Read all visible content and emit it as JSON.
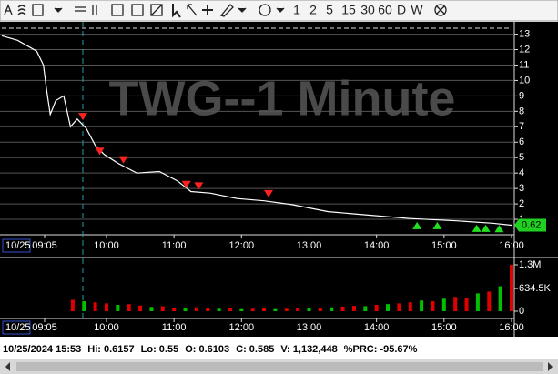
{
  "toolbar": {
    "intervals": [
      "1",
      "2",
      "5",
      "15",
      "30",
      "60",
      "D",
      "W"
    ]
  },
  "chart_data": [
    {
      "type": "line",
      "title": "TWG--1 Minute",
      "date_label": "10/25",
      "color": "#ffffff",
      "x": [
        "08:27",
        "08:41",
        "08:58",
        "09:04",
        "09:07",
        "09:10",
        "09:15",
        "09:22",
        "09:28",
        "09:34",
        "09:42",
        "09:50",
        "09:58",
        "10:11",
        "10:27",
        "10:47",
        "11:03",
        "11:15",
        "11:32",
        "11:56",
        "12:20",
        "12:45",
        "13:17",
        "13:49",
        "14:30",
        "15:11",
        "15:43",
        "16:00"
      ],
      "values": [
        12.9,
        12.6,
        11.9,
        11,
        9.3,
        7.8,
        8.7,
        9,
        7,
        7.5,
        6.9,
        5.8,
        5.2,
        4.6,
        4,
        4.1,
        3.5,
        2.8,
        2.7,
        2.35,
        2.2,
        1.95,
        1.5,
        1.3,
        1.05,
        0.9,
        0.75,
        0.62
      ],
      "xlim": [
        "08:27",
        "16:00"
      ],
      "xticks": [
        "09:05",
        "10:00",
        "11:00",
        "12:00",
        "13:00",
        "14:00",
        "15:00",
        "16:00"
      ],
      "ylim": [
        0,
        13.8
      ],
      "yticks": [
        1,
        2,
        3,
        4,
        5,
        6,
        7,
        8,
        9,
        10,
        11,
        12,
        13
      ],
      "grid": true,
      "session_line": "09:39",
      "last_value_label": 0.62,
      "sell_signals": {
        "color": "#ff2020",
        "x": [
          "09:39",
          "09:54",
          "10:15",
          "11:11",
          "11:22",
          "12:24"
        ],
        "values": [
          7.6,
          5.35,
          4.8,
          3.2,
          3.1,
          2.6
        ]
      },
      "buy_signals": {
        "color": "#20e020",
        "x": [
          "14:36",
          "14:54",
          "15:29",
          "15:37",
          "15:49"
        ],
        "values": [
          0.6,
          0.6,
          0.42,
          0.42,
          0.4
        ]
      }
    },
    {
      "type": "bar",
      "date_label": "10/25",
      "x": [
        "09:30",
        "09:40",
        "09:50",
        "10:00",
        "10:10",
        "10:20",
        "10:30",
        "10:40",
        "10:50",
        "11:00",
        "11:10",
        "11:20",
        "11:30",
        "11:40",
        "11:50",
        "12:00",
        "12:10",
        "12:20",
        "12:30",
        "12:40",
        "12:50",
        "13:00",
        "13:10",
        "13:20",
        "13:30",
        "13:40",
        "13:50",
        "14:00",
        "14:10",
        "14:20",
        "14:30",
        "14:40",
        "14:50",
        "15:00",
        "15:10",
        "15:20",
        "15:30",
        "15:40",
        "15:50",
        "16:00"
      ],
      "values": [
        320000,
        280000,
        250000,
        220000,
        180000,
        200000,
        160000,
        120000,
        140000,
        100000,
        90000,
        110000,
        80000,
        70000,
        90000,
        60000,
        70000,
        80000,
        60000,
        70000,
        90000,
        80000,
        100000,
        110000,
        130000,
        150000,
        140000,
        180000,
        200000,
        220000,
        250000,
        300000,
        280000,
        350000,
        400000,
        380000,
        500000,
        550000,
        700000,
        1300000
      ],
      "colors": [
        "#e00000",
        "#00c000",
        "#e00000",
        "#e00000",
        "#00c000",
        "#e00000",
        "#e00000",
        "#00c000",
        "#e00000",
        "#e00000",
        "#00c000",
        "#e00000",
        "#e00000",
        "#00c000",
        "#e00000",
        "#00c000",
        "#e00000",
        "#e00000",
        "#00c000",
        "#e00000",
        "#e00000",
        "#00c000",
        "#e00000",
        "#00c000",
        "#e00000",
        "#e00000",
        "#00c000",
        "#e00000",
        "#00c000",
        "#e00000",
        "#e00000",
        "#00c000",
        "#e00000",
        "#00c000",
        "#e00000",
        "#e00000",
        "#00c000",
        "#e00000",
        "#00c000",
        "#e00000"
      ],
      "xlim": [
        "08:27",
        "16:00"
      ],
      "xticks": [
        "09:05",
        "10:00",
        "11:00",
        "12:00",
        "13:00",
        "14:00",
        "15:00",
        "16:00"
      ],
      "ylim": [
        0,
        1300000
      ],
      "yticks": [
        {
          "value": 1300000,
          "label": "1.3M"
        },
        {
          "value": 634500,
          "label": "634.5K"
        },
        0
      ]
    }
  ],
  "status": [
    "10/25/2024 15:53",
    "Hi: 0.6157",
    "Lo: 0.55",
    "O: 0.6103",
    "C: 0.585",
    "V: 1,132,448",
    "%PRC: -95.67%"
  ]
}
